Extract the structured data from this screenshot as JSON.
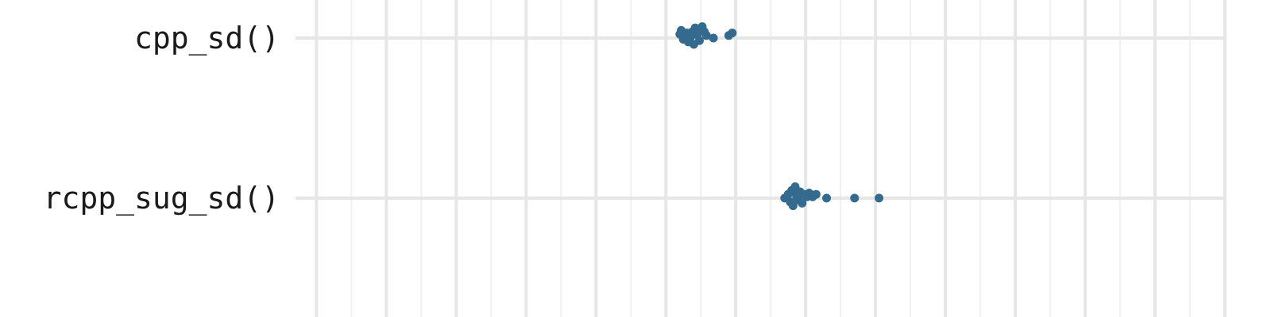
{
  "chart_data": {
    "type": "scatter",
    "title": "",
    "xlabel": "",
    "ylabel": "",
    "categories": [
      "cpp_sd()",
      "rcpp_sug_sd()"
    ],
    "xlim": [
      -2.3,
      11.0
    ],
    "grid": true,
    "point_color": "#336a8e",
    "series": [
      {
        "category": "cpp_sd()",
        "points": [
          {
            "x": 3.2,
            "y": 0.06
          },
          {
            "x": 3.22,
            "y": 0.12
          },
          {
            "x": 3.25,
            "y": -0.02
          },
          {
            "x": 3.28,
            "y": 0.03
          },
          {
            "x": 3.3,
            "y": 0.08
          },
          {
            "x": 3.32,
            "y": -0.06
          },
          {
            "x": 3.35,
            "y": 0.01
          },
          {
            "x": 3.38,
            "y": 0.1
          },
          {
            "x": 3.4,
            "y": -0.1
          },
          {
            "x": 3.42,
            "y": 0.16
          },
          {
            "x": 3.45,
            "y": 0.05
          },
          {
            "x": 3.48,
            "y": -0.04
          },
          {
            "x": 3.5,
            "y": 0.14
          },
          {
            "x": 3.52,
            "y": 0.18
          },
          {
            "x": 3.55,
            "y": 0.1
          },
          {
            "x": 3.58,
            "y": 0.04
          },
          {
            "x": 3.68,
            "y": 0.0
          },
          {
            "x": 3.9,
            "y": 0.04
          },
          {
            "x": 3.95,
            "y": 0.08
          }
        ]
      },
      {
        "category": "rcpp_sug_sd()",
        "points": [
          {
            "x": 4.7,
            "y": 0.0
          },
          {
            "x": 4.75,
            "y": 0.06
          },
          {
            "x": 4.78,
            "y": -0.06
          },
          {
            "x": 4.8,
            "y": 0.12
          },
          {
            "x": 4.82,
            "y": -0.12
          },
          {
            "x": 4.85,
            "y": 0.18
          },
          {
            "x": 4.87,
            "y": 0.03
          },
          {
            "x": 4.9,
            "y": -0.03
          },
          {
            "x": 4.92,
            "y": 0.1
          },
          {
            "x": 4.95,
            "y": -0.08
          },
          {
            "x": 4.98,
            "y": 0.06
          },
          {
            "x": 5.02,
            "y": 0.02
          },
          {
            "x": 5.05,
            "y": 0.08
          },
          {
            "x": 5.1,
            "y": 0.02
          },
          {
            "x": 5.15,
            "y": 0.06
          },
          {
            "x": 5.3,
            "y": 0.0
          },
          {
            "x": 5.7,
            "y": 0.0
          },
          {
            "x": 6.05,
            "y": 0.0
          }
        ]
      }
    ]
  }
}
